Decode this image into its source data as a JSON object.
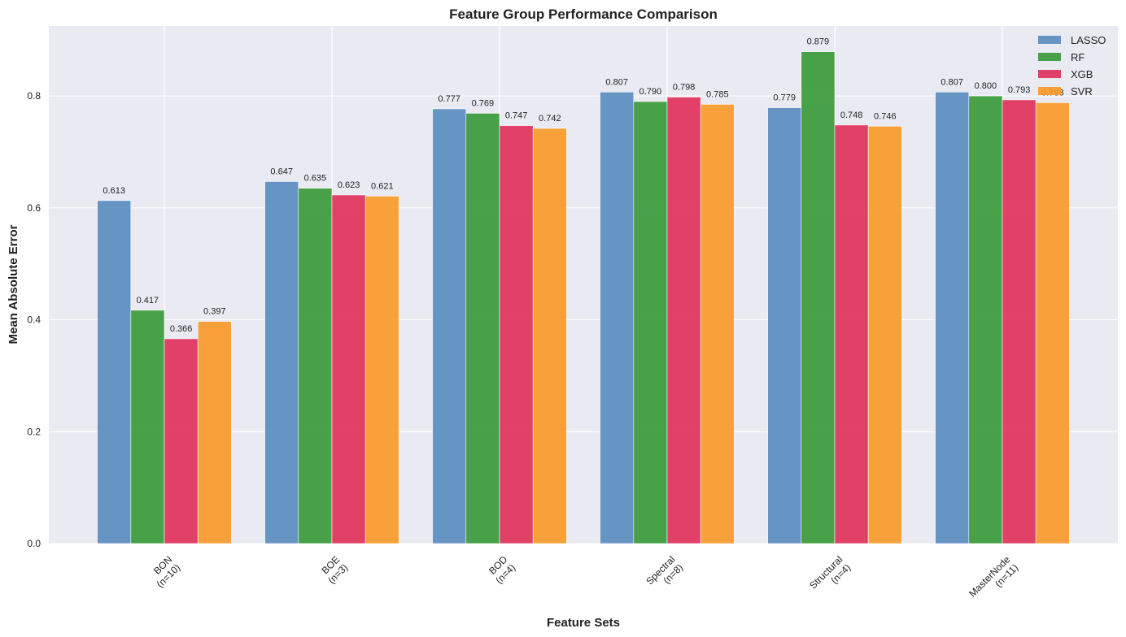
{
  "chart_data": {
    "type": "bar",
    "title": "Feature Group Performance Comparison",
    "xlabel": "Feature Sets",
    "ylabel": "Mean Absolute Error",
    "categories": [
      "BON\n(n=10)",
      "BOE\n(n=3)",
      "BOD\n(n=4)",
      "Spectral\n(n=8)",
      "Structural\n(n=4)",
      "MasterNode\n(n=11)"
    ],
    "series": [
      {
        "name": "LASSO",
        "color": "#5b8dbf",
        "values": [
          0.613,
          0.647,
          0.777,
          0.807,
          0.779,
          0.807
        ]
      },
      {
        "name": "RF",
        "color": "#3a9a3a",
        "values": [
          0.417,
          0.635,
          0.769,
          0.79,
          0.879,
          0.8
        ]
      },
      {
        "name": "XGB",
        "color": "#e0325a",
        "values": [
          0.366,
          0.623,
          0.747,
          0.798,
          0.748,
          0.793
        ]
      },
      {
        "name": "SVR",
        "color": "#f99a2a",
        "values": [
          0.397,
          0.621,
          0.742,
          0.785,
          0.746,
          0.788
        ]
      }
    ],
    "value_labels": [
      [
        "0.613",
        "0.647",
        "0.777",
        "0.807",
        "0.779",
        "0.807"
      ],
      [
        "0.417",
        "0.635",
        "0.769",
        "0.790",
        "0.879",
        "0.800"
      ],
      [
        "0.366",
        "0.623",
        "0.747",
        "0.798",
        "0.748",
        "0.793"
      ],
      [
        "0.397",
        "0.621",
        "0.742",
        "0.785",
        "0.746",
        "0.788"
      ]
    ],
    "yticks": [
      "0.0",
      "0.2",
      "0.4",
      "0.6",
      "0.8"
    ],
    "ylim": [
      0,
      0.925
    ],
    "grid": true,
    "legend_position": "top-right",
    "background_color": "#eaeaf2"
  }
}
